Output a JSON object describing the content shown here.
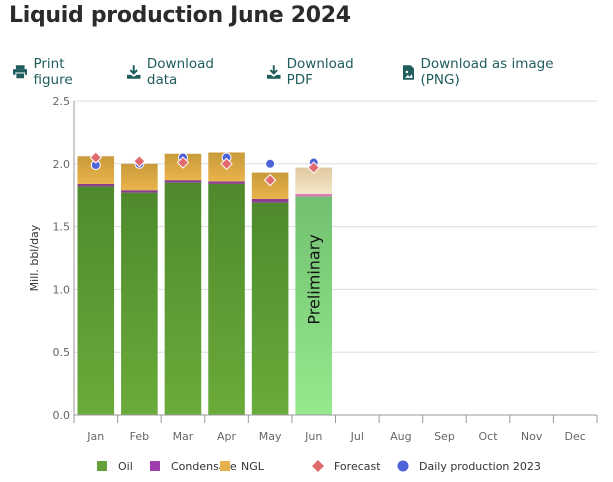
{
  "title": "Liquid production June 2024",
  "toolbar": {
    "print": "Print figure",
    "download_data": "Download data",
    "download_pdf": "Download PDF",
    "download_png": "Download as image (PNG)"
  },
  "chart_data": {
    "type": "bar",
    "stacked": true,
    "ylabel": "Mill. bbl/day",
    "ylim": [
      0,
      2.5
    ],
    "yticks": [
      "0.0",
      "0.5",
      "1.0",
      "1.5",
      "2.0",
      "2.5"
    ],
    "categories": [
      "Jan",
      "Feb",
      "Mar",
      "Apr",
      "May",
      "Jun",
      "Jul",
      "Aug",
      "Sep",
      "Oct",
      "Nov",
      "Dec"
    ],
    "annotation": "Preliminary",
    "annotation_category": "Jun",
    "grid": true,
    "legend_position": "bottom",
    "series": [
      {
        "name": "Oil",
        "kind": "bar",
        "color": "#65a33a",
        "values": [
          1.82,
          1.77,
          1.85,
          1.84,
          1.69,
          1.74,
          null,
          null,
          null,
          null,
          null,
          null
        ]
      },
      {
        "name": "Condensate",
        "kind": "bar",
        "color": "#9c3fad",
        "values": [
          0.02,
          0.02,
          0.02,
          0.02,
          0.03,
          0.02,
          null,
          null,
          null,
          null,
          null,
          null
        ]
      },
      {
        "name": "NGL",
        "kind": "bar",
        "color": "#e6b04a",
        "values": [
          0.22,
          0.21,
          0.21,
          0.23,
          0.21,
          0.21,
          null,
          null,
          null,
          null,
          null,
          null
        ]
      },
      {
        "name": "Forecast",
        "kind": "diamond",
        "color": "#e06a6e",
        "values": [
          2.05,
          2.02,
          2.01,
          2.0,
          1.87,
          1.97,
          null,
          null,
          null,
          null,
          null,
          null
        ]
      },
      {
        "name": "Daily production 2023",
        "kind": "dot",
        "color": "#4f63d8",
        "values": [
          1.99,
          2.0,
          2.05,
          2.05,
          2.0,
          2.01,
          null,
          null,
          null,
          null,
          null,
          null
        ]
      }
    ]
  }
}
